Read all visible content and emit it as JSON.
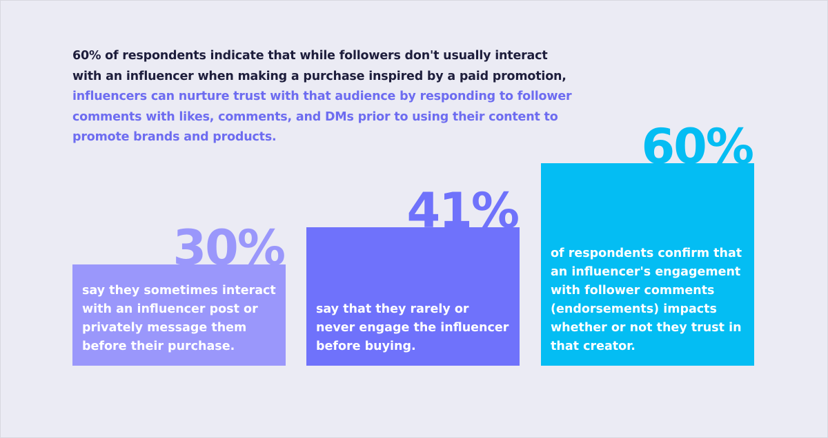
{
  "chart_data": {
    "type": "bar",
    "title": "60% of respondents indicate that while followers don't usually interact with an influencer when making a purchase inspired by a paid promotion,",
    "highlight": "influencers can nurture trust with that audience by responding to follower comments with likes, comments, and DMs prior to using their content to promote brands and products.",
    "categories": [
      "say they sometimes interact with an influencer post or privately message them before their purchase.",
      "say that they rarely or never engage the influencer before buying.",
      "of respondents confirm that an influencer's engagement with follower comments (endorsements) impacts whether or not they trust in that creator."
    ],
    "values": [
      30,
      41,
      60
    ],
    "value_labels": [
      "30%",
      "41%",
      "60%"
    ],
    "colors": [
      "#9a97fb",
      "#6f72fb",
      "#04bdf3"
    ]
  }
}
